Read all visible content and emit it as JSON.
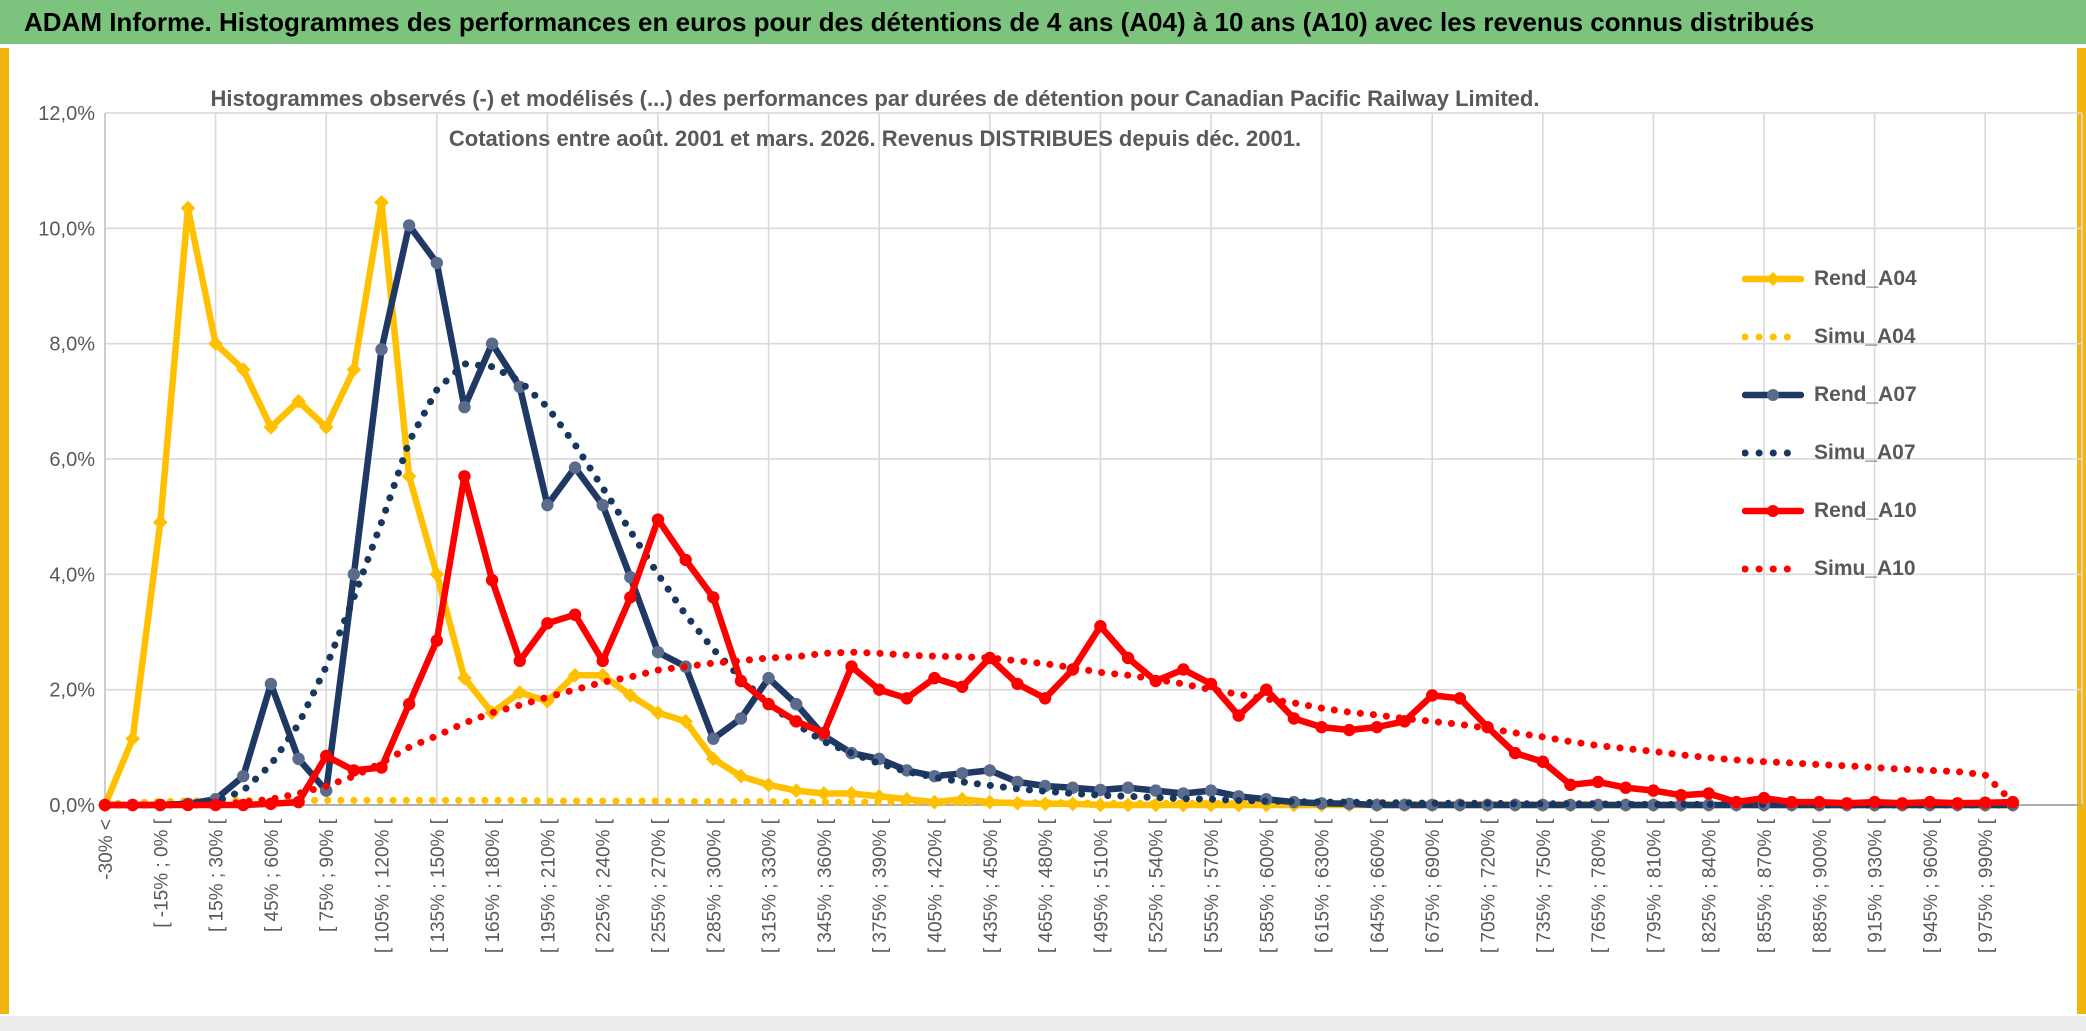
{
  "window": {
    "header_title": "ADAM Informe. Histogrammes des performances en euros pour des détentions de 4 ans (A04) à 10 ans (A10) avec les revenus connus distribués",
    "colors": {
      "header_bg": "#7CC47E",
      "header_text": "#000000",
      "edge_bar": "#F2B50B",
      "footer_strip": "#ECECEC"
    }
  },
  "chart_data": {
    "type": "line",
    "title_line1": "Histogrammes observés (-) et modélisés (...) des performances par durées de détention pour Canadian Pacific Railway Limited.",
    "title_line2": "Cotations entre août. 2001 et mars. 2026. Revenus DISTRIBUES depuis déc. 2001.",
    "grid": true,
    "legend_position": "right",
    "ylim": [
      0,
      12
    ],
    "y_tick_labels": [
      "0,0%",
      "2,0%",
      "4,0%",
      "6,0%",
      "8,0%",
      "10,0%",
      "12,0%"
    ],
    "n_bins": 70,
    "x_labels_every_other_bin": true,
    "x_tick_labels": [
      "-30% <",
      "[ -15% ; 0% [",
      "[ 15% ; 30% [",
      "[ 45% ; 60% [",
      "[ 75% ; 90% [",
      "[ 105% ; 120% [",
      "[ 135% ; 150% [",
      "[ 165% ; 180% [",
      "[ 195% ; 210% [",
      "[ 225% ; 240% [",
      "[ 255% ; 270% [",
      "[ 285% ; 300% [",
      "[ 315% ; 330% [",
      "[ 345% ; 360% [",
      "[ 375% ; 390% [",
      "[ 405% ; 420% [",
      "[ 435% ; 450% [",
      "[ 465% ; 480% [",
      "[ 495% ; 510% [",
      "[ 525% ; 540% [",
      "[ 555% ; 570% [",
      "[ 585% ; 600% [",
      "[ 615% ; 630% [",
      "[ 645% ; 660% [",
      "[ 675% ; 690% [",
      "[ 705% ; 720% [",
      "[ 735% ; 750% [",
      "[ 765% ; 780% [",
      "[ 795% ; 810% [",
      "[ 825% ; 840% [",
      "[ 855% ; 870% [",
      "[ 885% ; 900% [",
      "[ 915% ; 930% [",
      "[ 945% ; 960% [",
      "[ 975% ; 990% ["
    ],
    "colors": {
      "grid": "#D9D9D9",
      "axis": "#A6A6A6",
      "text": "#595959"
    },
    "series": [
      {
        "name": "Rend_A04",
        "style": "solid",
        "marker": "diamond",
        "color": "#FFC000",
        "marker_color": "#FFC000",
        "values": [
          0,
          1.15,
          4.9,
          10.35,
          8.0,
          7.55,
          6.55,
          7.0,
          6.55,
          7.55,
          10.45,
          5.7,
          4.0,
          2.2,
          1.6,
          1.95,
          1.8,
          2.25,
          2.25,
          1.9,
          1.6,
          1.45,
          0.8,
          0.5,
          0.35,
          0.25,
          0.2,
          0.2,
          0.15,
          0.1,
          0.05,
          0.1,
          0.05,
          0.03,
          0.02,
          0.02,
          0,
          0,
          0,
          0,
          0,
          0,
          0,
          0,
          0,
          0,
          0,
          0,
          0,
          0,
          0,
          0,
          0,
          0,
          0,
          0,
          0,
          0,
          0,
          0,
          0,
          0,
          0,
          0,
          0,
          0,
          0,
          0,
          0,
          0
        ]
      },
      {
        "name": "Simu_A04",
        "style": "dotted",
        "color": "#FFC000",
        "values": [
          0.02,
          0.04,
          0.06,
          0.07,
          0.08,
          0.08,
          0.08,
          0.08,
          0.08,
          0.08,
          0.08,
          0.08,
          0.08,
          0.08,
          0.08,
          0.08,
          0.07,
          0.07,
          0.07,
          0.07,
          0.07,
          0.06,
          0.06,
          0.06,
          0.06,
          0.05,
          0.05,
          0.05,
          0.05,
          0.05,
          0.05,
          0.04,
          0.04,
          0.04,
          0.04,
          0.04,
          0.03,
          0.03,
          0.03,
          0.03,
          0.03,
          0.02,
          0.02,
          0.02,
          0.02,
          0.01,
          0.01,
          0.01,
          0.01,
          0.01,
          0.01,
          0.01,
          0.01,
          0.01,
          0.01,
          0,
          0,
          0,
          0,
          0,
          0,
          0,
          0,
          0,
          0,
          0,
          0,
          0,
          0,
          0
        ]
      },
      {
        "name": "Rend_A07",
        "style": "solid",
        "marker": "circle",
        "color": "#1F3864",
        "marker_color": "#5A6B8C",
        "values": [
          0,
          0,
          0,
          0.02,
          0.1,
          0.5,
          2.1,
          0.8,
          0.25,
          4.0,
          7.9,
          10.05,
          9.4,
          6.9,
          8.0,
          7.25,
          5.2,
          5.85,
          5.2,
          3.95,
          2.65,
          2.4,
          1.15,
          1.5,
          2.2,
          1.75,
          1.2,
          0.9,
          0.8,
          0.6,
          0.5,
          0.55,
          0.6,
          0.4,
          0.33,
          0.3,
          0.26,
          0.3,
          0.25,
          0.2,
          0.25,
          0.15,
          0.1,
          0.05,
          0.03,
          0.02,
          0,
          0,
          0,
          0,
          0,
          0,
          0,
          0,
          0,
          0,
          0,
          0,
          0,
          0,
          0,
          0,
          0,
          0,
          0,
          0,
          0,
          0,
          0,
          0
        ]
      },
      {
        "name": "Simu_A07",
        "style": "dotted",
        "color": "#17375E",
        "values": [
          0,
          0,
          0,
          0.02,
          0.06,
          0.25,
          0.7,
          1.4,
          2.4,
          3.6,
          4.9,
          6.3,
          7.2,
          7.65,
          7.6,
          7.35,
          6.9,
          6.25,
          5.5,
          4.75,
          4.0,
          3.3,
          2.7,
          2.2,
          1.75,
          1.4,
          1.1,
          0.9,
          0.72,
          0.58,
          0.48,
          0.4,
          0.34,
          0.28,
          0.24,
          0.2,
          0.17,
          0.15,
          0.13,
          0.11,
          0.1,
          0.08,
          0.07,
          0.06,
          0.05,
          0.05,
          0.04,
          0.04,
          0.03,
          0.03,
          0.03,
          0.02,
          0.02,
          0.02,
          0.02,
          0.01,
          0.01,
          0.01,
          0.01,
          0.01,
          0.01,
          0.01,
          0,
          0,
          0,
          0,
          0,
          0,
          0,
          0
        ]
      },
      {
        "name": "Rend_A10",
        "style": "solid",
        "marker": "circle",
        "color": "#FE0000",
        "marker_color": "#FE0000",
        "values": [
          0,
          0,
          0,
          0,
          0,
          0,
          0.02,
          0.05,
          0.85,
          0.6,
          0.65,
          1.75,
          2.85,
          5.7,
          3.9,
          2.5,
          3.15,
          3.3,
          2.5,
          3.6,
          4.95,
          4.25,
          3.6,
          2.15,
          1.75,
          1.45,
          1.25,
          2.4,
          2.0,
          1.85,
          2.2,
          2.05,
          2.55,
          2.1,
          1.85,
          2.35,
          3.1,
          2.55,
          2.15,
          2.35,
          2.1,
          1.55,
          2.0,
          1.5,
          1.35,
          1.3,
          1.35,
          1.45,
          1.9,
          1.85,
          1.35,
          0.9,
          0.75,
          0.35,
          0.4,
          0.3,
          0.25,
          0.17,
          0.2,
          0.05,
          0.12,
          0.05,
          0.05,
          0.03,
          0.05,
          0.03,
          0.05,
          0.03,
          0.04,
          0.05
        ]
      },
      {
        "name": "Simu_A10",
        "style": "dotted",
        "color": "#FE0000",
        "values": [
          0,
          0,
          0,
          0,
          0,
          0.05,
          0.1,
          0.2,
          0.33,
          0.5,
          0.73,
          1.0,
          1.2,
          1.42,
          1.6,
          1.73,
          1.87,
          2.0,
          2.13,
          2.22,
          2.34,
          2.4,
          2.46,
          2.5,
          2.55,
          2.57,
          2.63,
          2.65,
          2.63,
          2.6,
          2.58,
          2.57,
          2.55,
          2.5,
          2.45,
          2.38,
          2.3,
          2.25,
          2.18,
          2.1,
          2.0,
          1.92,
          1.84,
          1.77,
          1.68,
          1.61,
          1.56,
          1.5,
          1.45,
          1.4,
          1.33,
          1.25,
          1.18,
          1.1,
          1.03,
          0.98,
          0.93,
          0.87,
          0.82,
          0.78,
          0.75,
          0.73,
          0.7,
          0.68,
          0.65,
          0.62,
          0.6,
          0.58,
          0.52,
          0.05
        ]
      }
    ]
  }
}
